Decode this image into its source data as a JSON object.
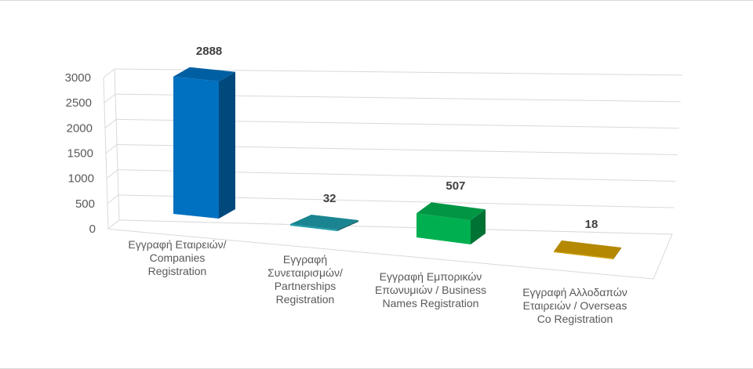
{
  "chart_data": {
    "type": "bar",
    "variant": "3d-column",
    "categories": [
      [
        "Εγγραφή Εταιρειών/",
        "Companies",
        "Registration"
      ],
      [
        "Εγγραφή",
        "Συνεταιρισμών/",
        "Partnerships",
        "Registration"
      ],
      [
        "Εγγραφή Εμπορικών",
        "Επωνυμιών / Business",
        "Names Registration"
      ],
      [
        "Εγγραφή Αλλοδαπών",
        "Εταιρειών / Overseas",
        "Co Registration"
      ]
    ],
    "values": [
      2888,
      32,
      507,
      18
    ],
    "data_labels": [
      "2888",
      "32",
      "507",
      "18"
    ],
    "ylim": [
      0,
      3000
    ],
    "yticks": [
      "0",
      "500",
      "1000",
      "1500",
      "2000",
      "2500",
      "3000"
    ],
    "grid": true,
    "legend": "none",
    "colors": [
      "#0070C0",
      "#1F9DAA",
      "#00B050",
      "#D4A000"
    ]
  }
}
